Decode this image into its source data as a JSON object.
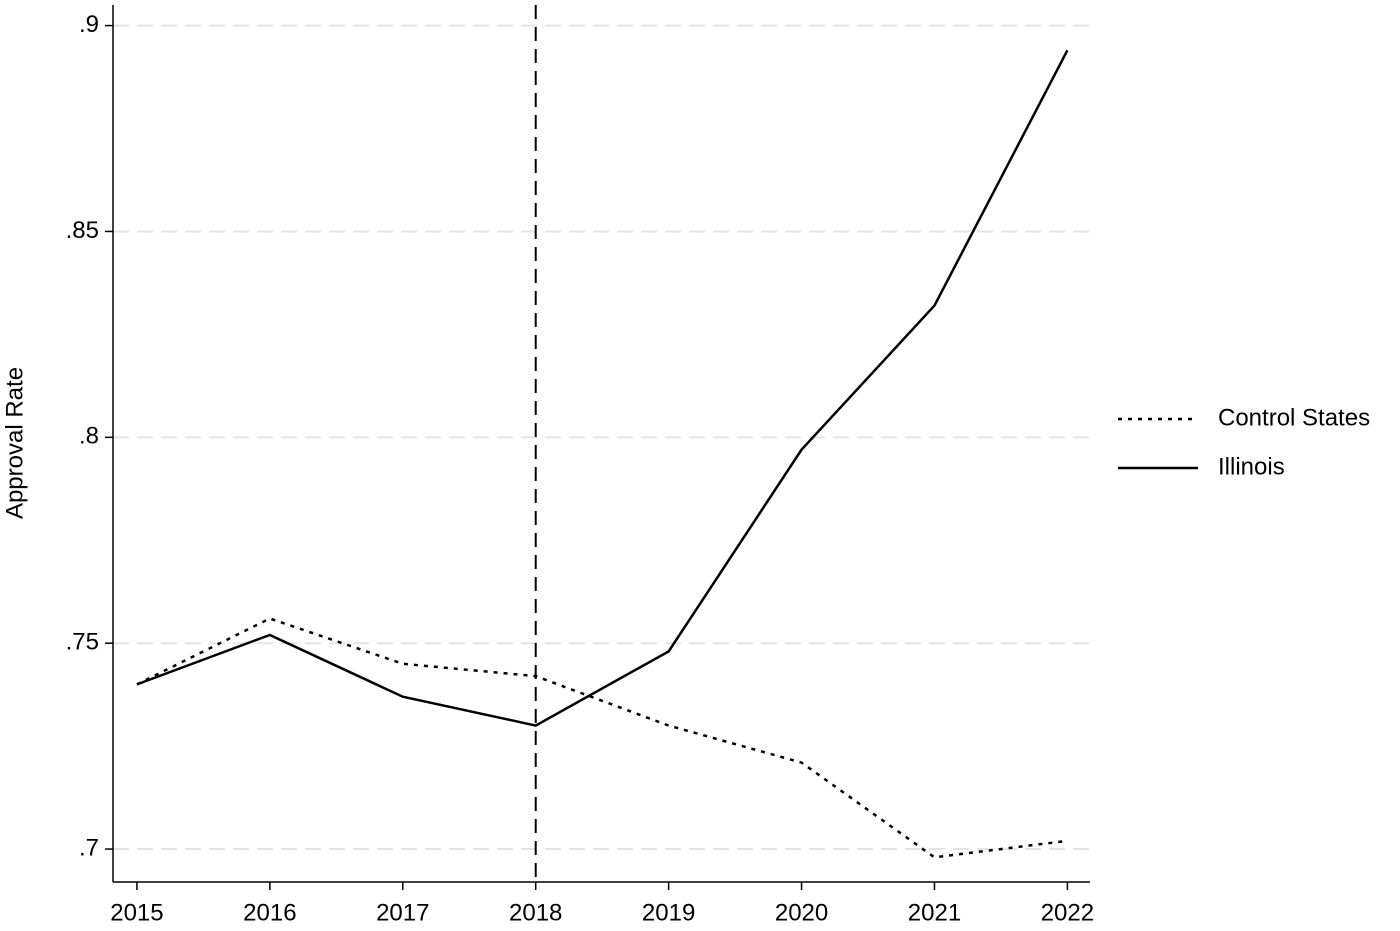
{
  "chart_data": {
    "type": "line",
    "ylabel": "Approval Rate",
    "x": [
      2015,
      2016,
      2017,
      2018,
      2019,
      2020,
      2021,
      2022
    ],
    "series": [
      {
        "name": "Control States",
        "color": "#000000",
        "dash": "dotted",
        "values": [
          0.74,
          0.756,
          0.745,
          0.742,
          0.73,
          0.721,
          0.698,
          0.702
        ]
      },
      {
        "name": "Illinois",
        "color": "#000000",
        "dash": "solid",
        "values": [
          0.74,
          0.752,
          0.737,
          0.73,
          0.748,
          0.797,
          0.832,
          0.894
        ]
      }
    ],
    "xlim": [
      2014.82,
      2022.17
    ],
    "ylim": [
      0.692,
      0.905
    ],
    "xticks": [
      2015,
      2016,
      2017,
      2018,
      2019,
      2020,
      2021,
      2022
    ],
    "yticks": [
      {
        "value": 0.7,
        "label": ".7"
      },
      {
        "value": 0.75,
        "label": ".75"
      },
      {
        "value": 0.8,
        "label": ".8"
      },
      {
        "value": 0.85,
        "label": ".85"
      },
      {
        "value": 0.9,
        "label": ".9"
      }
    ],
    "vline": 2018,
    "grid": true,
    "legend": "right"
  }
}
